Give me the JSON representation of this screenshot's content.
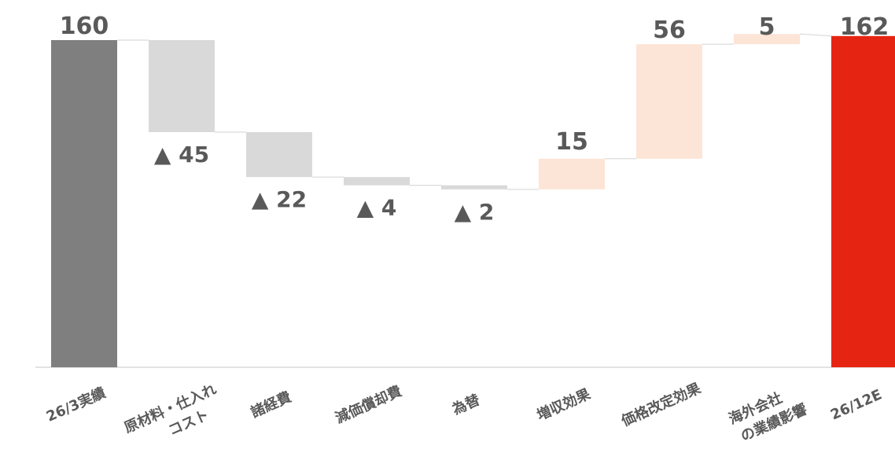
{
  "colors": {
    "start_bar": "#7f7f7f",
    "end_bar": "#e52512",
    "decrease_bar": "#d9d9d9",
    "increase_bar": "#fce4d6",
    "connector": "#d9d9d9",
    "axis": "#d9d9d9",
    "label_text": "#595959"
  },
  "chart_data": {
    "type": "bar",
    "subtype": "waterfall",
    "title": "",
    "xlabel": "",
    "ylabel": "",
    "grid": false,
    "legend": "none",
    "ylim": [
      0,
      170
    ],
    "steps": [
      {
        "category": "26/3実績",
        "category_lines": [
          "26/3実績"
        ],
        "kind": "total",
        "value": 160,
        "label": "160"
      },
      {
        "category": "原材料・仕入れコスト",
        "category_lines": [
          "原材料・仕入れ",
          "コスト"
        ],
        "kind": "decrease",
        "value": -45,
        "label": "▲ 45"
      },
      {
        "category": "諸経費",
        "category_lines": [
          "諸経費"
        ],
        "kind": "decrease",
        "value": -22,
        "label": "▲ 22"
      },
      {
        "category": "減価償却費",
        "category_lines": [
          "減価償却費"
        ],
        "kind": "decrease",
        "value": -4,
        "label": "▲ 4"
      },
      {
        "category": "為替",
        "category_lines": [
          "為替"
        ],
        "kind": "decrease",
        "value": -2,
        "label": "▲ 2"
      },
      {
        "category": "増収効果",
        "category_lines": [
          "増収効果"
        ],
        "kind": "increase",
        "value": 15,
        "label": "15"
      },
      {
        "category": "価格改定効果",
        "category_lines": [
          "価格改定効果"
        ],
        "kind": "increase",
        "value": 56,
        "label": "56"
      },
      {
        "category": "海外会社の業績影響",
        "category_lines": [
          "海外会社",
          "の業績影響"
        ],
        "kind": "increase",
        "value": 5,
        "label": "5"
      },
      {
        "category": "26/12E",
        "category_lines": [
          "26/12E"
        ],
        "kind": "total",
        "value": 162,
        "label": "162"
      }
    ]
  }
}
